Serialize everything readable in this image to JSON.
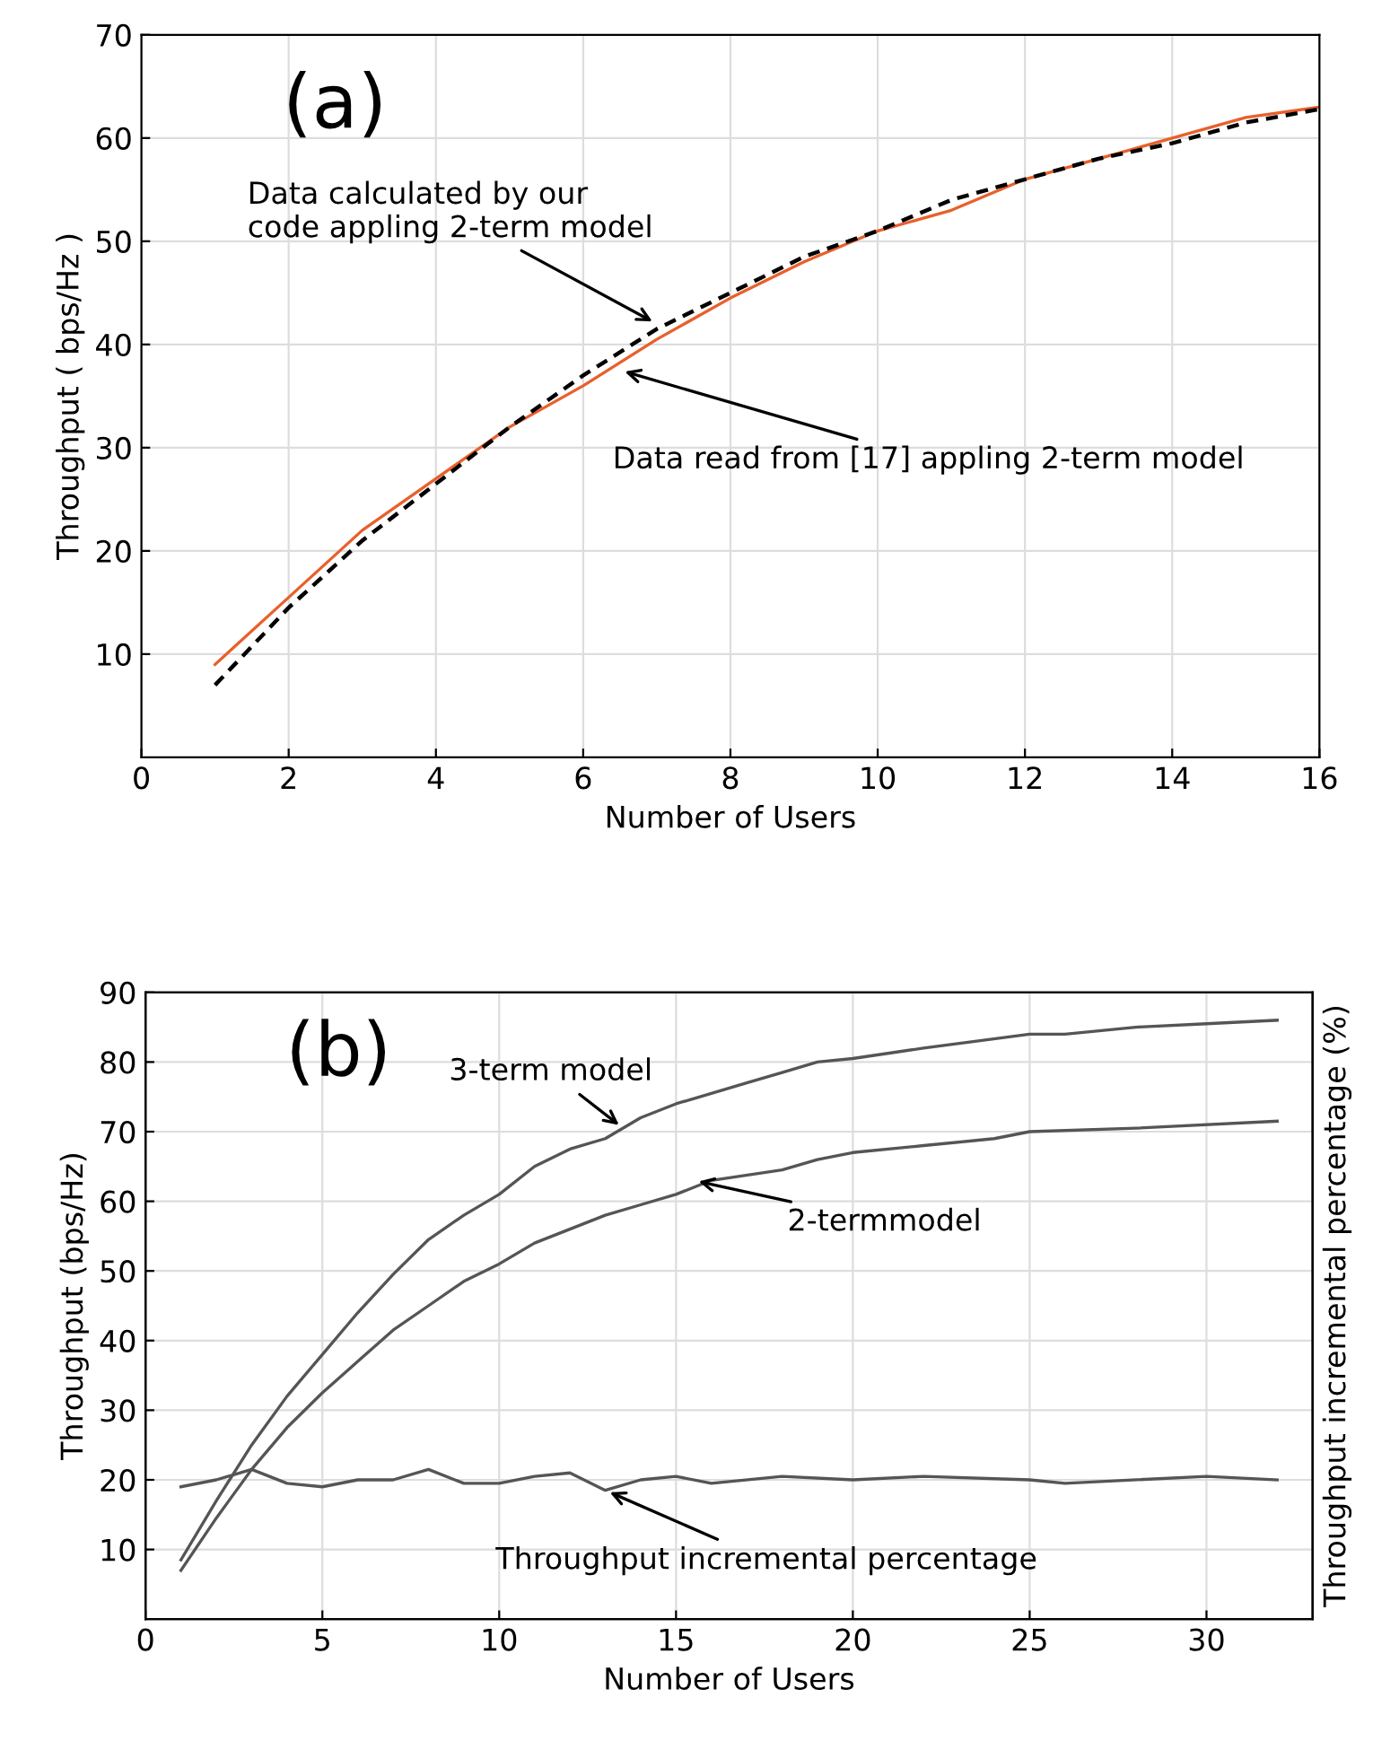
{
  "chart_data": [
    {
      "type": "line",
      "xlabel": "Number of Users",
      "ylabel": "Throughput ( bps/Hz )",
      "xlim": [
        0,
        16
      ],
      "ylim": [
        0,
        70
      ],
      "xticks": [
        0,
        2,
        4,
        6,
        8,
        10,
        12,
        14,
        16
      ],
      "yticks": [
        10,
        20,
        30,
        40,
        50,
        60,
        70
      ],
      "grid": true,
      "legend": false,
      "series": [
        {
          "color": "#e8602c",
          "line_style": "solid",
          "x": [
            1,
            2,
            3,
            4,
            5,
            6,
            7,
            8,
            9,
            10,
            11,
            12,
            13,
            14,
            15,
            16
          ],
          "values": [
            9,
            15.5,
            22,
            27,
            32,
            36,
            40.5,
            44.5,
            48,
            51,
            53,
            56,
            58,
            60,
            62,
            63
          ]
        },
        {
          "color": "#000000",
          "line_style": "dashed",
          "x": [
            1,
            2,
            3,
            4,
            5,
            6,
            7,
            8,
            9,
            10,
            11,
            12,
            13,
            14,
            15,
            16
          ],
          "values": [
            7,
            14.5,
            21,
            26.5,
            32,
            37,
            41.5,
            45,
            48.5,
            51,
            54,
            56,
            58,
            59.5,
            61.5,
            62.8
          ]
        }
      ],
      "annotations": [
        "(a)",
        {
          "text": "Data calculated by our\ncode appling 2-term model",
          "x": 7,
          "y": 42
        },
        {
          "text": "Data read from [17] appling 2-term model",
          "x": 6.5,
          "y": 37.5
        }
      ]
    },
    {
      "type": "line",
      "xlabel": "Number of Users",
      "ylabel": "Throughput (bps/Hz)",
      "y2label": "Throughput incremental percentage (%)",
      "xlim": [
        0,
        33
      ],
      "ylim": [
        0,
        90
      ],
      "xticks": [
        0,
        5,
        10,
        15,
        20,
        25,
        30
      ],
      "yticks": [
        10,
        20,
        30,
        40,
        50,
        60,
        70,
        80,
        90
      ],
      "grid": true,
      "legend": false,
      "series": [
        {
          "color": "#555555",
          "line_style": "solid",
          "x": [
            1,
            2,
            3,
            4,
            5,
            6,
            7,
            8,
            9,
            10,
            11,
            12,
            13,
            14,
            15,
            16,
            17,
            18,
            19,
            20,
            22,
            25,
            26,
            28,
            30,
            32
          ],
          "values": [
            8.5,
            17,
            25,
            32,
            38,
            44,
            49.5,
            54.5,
            58,
            61,
            65,
            67.5,
            69,
            72,
            74,
            75.5,
            77,
            78.5,
            80,
            80.5,
            82,
            84,
            84,
            85,
            85.5,
            86
          ]
        },
        {
          "color": "#555555",
          "line_style": "solid",
          "x": [
            1,
            2,
            3,
            4,
            5,
            6,
            7,
            8,
            9,
            10,
            11,
            12,
            13,
            14,
            15,
            16,
            18,
            19,
            20,
            22,
            24,
            25,
            28,
            32
          ],
          "values": [
            7,
            14.5,
            21.5,
            27.5,
            32.5,
            37,
            41.5,
            45,
            48.5,
            51,
            54,
            56,
            58,
            59.5,
            61,
            63,
            64.5,
            66,
            67,
            68,
            69,
            70,
            70.5,
            71.5
          ]
        },
        {
          "color": "#555555",
          "line_style": "solid",
          "x": [
            1,
            2,
            3,
            4,
            5,
            6,
            7,
            8,
            9,
            10,
            11,
            12,
            13,
            14,
            15,
            16,
            18,
            20,
            22,
            25,
            26,
            30,
            32
          ],
          "values": [
            19,
            20,
            21.5,
            19.5,
            19,
            20,
            20,
            21.5,
            19.5,
            19.5,
            20.5,
            21,
            18.5,
            20,
            20.5,
            19.5,
            20.5,
            20,
            20.5,
            20,
            19.5,
            20.5,
            20
          ]
        }
      ],
      "annotations": [
        "(b)",
        {
          "text": "3-term model",
          "x": 13.5,
          "y": 70.5
        },
        {
          "text": "2-termmodel",
          "x": 15.5,
          "y": 63
        },
        {
          "text": "Throughput incremental percentage",
          "x": 13,
          "y": 18.5
        }
      ]
    }
  ]
}
